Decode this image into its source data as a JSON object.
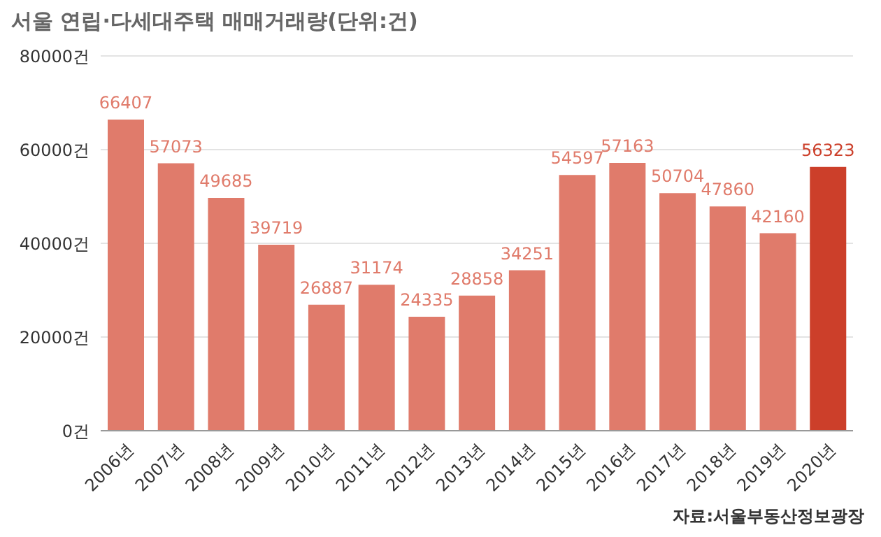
{
  "chart_data": {
    "type": "bar",
    "title": "서울 연립·다세대주택 매매거래량(단위:건)",
    "annotations": [
      "자료:서울부동산정보광장"
    ],
    "categories": [
      "2006년",
      "2007년",
      "2008년",
      "2009년",
      "2010년",
      "2011년",
      "2012년",
      "2013년",
      "2014년",
      "2015년",
      "2016년",
      "2017년",
      "2018년",
      "2019년",
      "2020년"
    ],
    "values": [
      66407,
      57073,
      49685,
      39719,
      26887,
      31174,
      24335,
      28858,
      34251,
      54597,
      57163,
      50704,
      47860,
      42160,
      56323
    ],
    "colors": [
      "#e07b6b",
      "#e07b6b",
      "#e07b6b",
      "#e07b6b",
      "#e07b6b",
      "#e07b6b",
      "#e07b6b",
      "#e07b6b",
      "#e07b6b",
      "#e07b6b",
      "#e07b6b",
      "#e07b6b",
      "#e07b6b",
      "#e07b6b",
      "#cc3f2a"
    ],
    "ylim": [
      0,
      80000
    ],
    "yticks": [
      {
        "value": 0,
        "label": "0건"
      },
      {
        "value": 20000,
        "label": "20000건"
      },
      {
        "value": 40000,
        "label": "40000건"
      },
      {
        "value": 60000,
        "label": "60000건"
      },
      {
        "value": 80000,
        "label": "80000건"
      }
    ],
    "grid": "y",
    "legend": false,
    "data_labels": true
  }
}
